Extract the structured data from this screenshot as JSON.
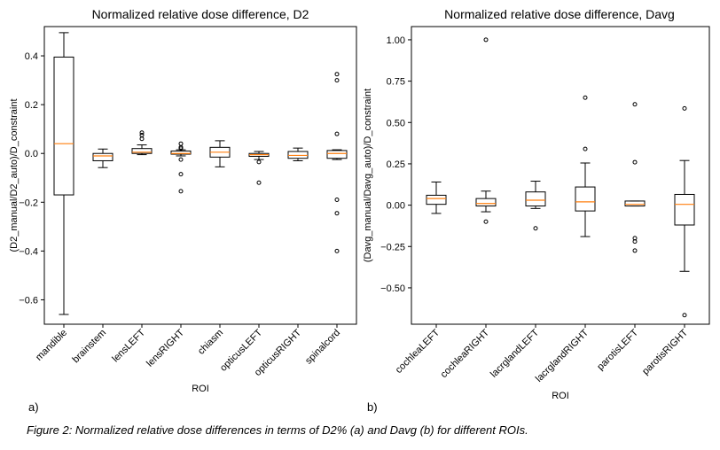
{
  "caption": "Figure 2: Normalized relative dose differences in terms of D2% (a) and Davg (b) for different ROIs.",
  "panel_labels": {
    "a": "a)",
    "b": "b)"
  },
  "chart_data": [
    {
      "type": "box",
      "title": "Normalized relative dose difference, D2",
      "xlabel": "ROI",
      "ylabel": "(D2_manual/D2_auto)/D_constraint",
      "ylim": [
        -0.7,
        0.52
      ],
      "yticks": [
        -0.6,
        -0.4,
        -0.2,
        0.0,
        0.2,
        0.4
      ],
      "ytick_labels": [
        "−0.6",
        "−0.4",
        "−0.2",
        "0.0",
        "0.2",
        "0.4"
      ],
      "grid": false,
      "colors": {
        "box": "#000000",
        "median": "#ff7f0e"
      },
      "categories": [
        "mandible",
        "brainstem",
        "lensLEFT",
        "lensRIGHT",
        "chiasm",
        "opticusLEFT",
        "opticusRIGHT",
        "spinalcord"
      ],
      "boxes": [
        {
          "whislo": -0.66,
          "q1": -0.17,
          "med": 0.04,
          "q3": 0.395,
          "whishi": 0.495,
          "fliers": []
        },
        {
          "whislo": -0.058,
          "q1": -0.03,
          "med": -0.01,
          "q3": 0.0,
          "whishi": 0.018,
          "fliers": []
        },
        {
          "whislo": -0.005,
          "q1": 0.0,
          "med": 0.005,
          "q3": 0.02,
          "whishi": 0.035,
          "fliers": [
            0.06,
            0.075,
            0.085
          ]
        },
        {
          "whislo": -0.01,
          "q1": -0.003,
          "med": 0.0,
          "q3": 0.01,
          "whishi": 0.015,
          "fliers": [
            0.04,
            0.025,
            0.02,
            -0.025,
            -0.085,
            -0.155
          ]
        },
        {
          "whislo": -0.055,
          "q1": -0.015,
          "med": 0.005,
          "q3": 0.025,
          "whishi": 0.052,
          "fliers": []
        },
        {
          "whislo": -0.025,
          "q1": -0.012,
          "med": -0.005,
          "q3": 0.0,
          "whishi": 0.008,
          "fliers": [
            -0.035,
            -0.12
          ]
        },
        {
          "whislo": -0.03,
          "q1": -0.02,
          "med": -0.008,
          "q3": 0.008,
          "whishi": 0.022,
          "fliers": []
        },
        {
          "whislo": -0.025,
          "q1": -0.02,
          "med": 0.0,
          "q3": 0.012,
          "whishi": 0.015,
          "fliers": [
            0.325,
            0.3,
            0.08,
            -0.19,
            -0.245,
            -0.4
          ]
        }
      ]
    },
    {
      "type": "box",
      "title": "Normalized relative dose difference, Davg",
      "xlabel": "ROI",
      "ylabel": "(Davg_manual/Davg_auto)/D_constraint",
      "ylim": [
        -0.72,
        1.08
      ],
      "yticks": [
        -0.5,
        -0.25,
        0.0,
        0.25,
        0.5,
        0.75,
        1.0
      ],
      "ytick_labels": [
        "−0.50",
        "−0.25",
        "0.00",
        "0.25",
        "0.50",
        "0.75",
        "1.00"
      ],
      "grid": false,
      "colors": {
        "box": "#000000",
        "median": "#ff7f0e"
      },
      "categories": [
        "cochleaLEFT",
        "cochleaRIGHT",
        "lacrglandLEFT",
        "lacrglandRIGHT",
        "parotisLEFT",
        "parotisRIGHT"
      ],
      "boxes": [
        {
          "whislo": -0.05,
          "q1": 0.005,
          "med": 0.04,
          "q3": 0.06,
          "whishi": 0.14,
          "fliers": []
        },
        {
          "whislo": -0.04,
          "q1": -0.005,
          "med": 0.01,
          "q3": 0.04,
          "whishi": 0.085,
          "fliers": [
            1.0,
            -0.1
          ]
        },
        {
          "whislo": -0.02,
          "q1": -0.005,
          "med": 0.03,
          "q3": 0.08,
          "whishi": 0.145,
          "fliers": [
            -0.14
          ]
        },
        {
          "whislo": -0.19,
          "q1": -0.035,
          "med": 0.02,
          "q3": 0.11,
          "whishi": 0.255,
          "fliers": [
            0.65,
            0.34
          ]
        },
        {
          "whislo": -0.005,
          "q1": -0.005,
          "med": 0.005,
          "q3": 0.025,
          "whishi": 0.025,
          "fliers": [
            0.61,
            0.26,
            -0.2,
            -0.22,
            -0.275
          ]
        },
        {
          "whislo": -0.4,
          "q1": -0.12,
          "med": 0.005,
          "q3": 0.065,
          "whishi": 0.27,
          "fliers": [
            0.585,
            -0.665
          ]
        }
      ]
    }
  ]
}
